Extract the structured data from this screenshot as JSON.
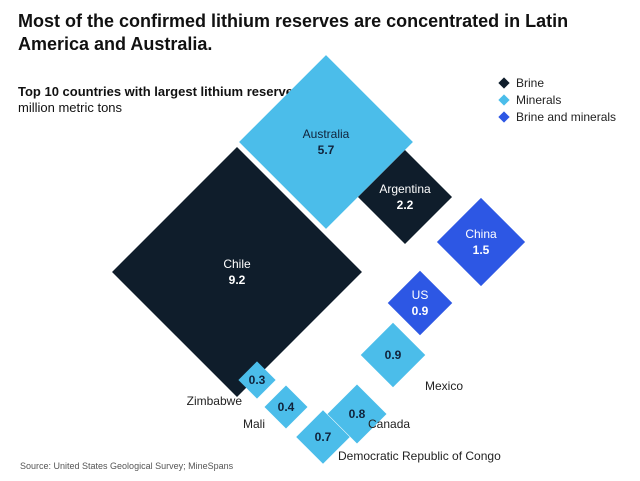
{
  "title": "Most of the confirmed lithium reserves are concentrated in Latin America and Australia.",
  "subtitle_bold": "Top 10 countries with largest lithium reserves,",
  "subtitle_unit": "million metric tons",
  "source": "Source: United States Geological Survey; MineSpans",
  "colors": {
    "Brine": "#0f1d2b",
    "Minerals": "#4bbdea",
    "Brine and minerals": "#2d57e4"
  },
  "legend": [
    {
      "label": "Brine",
      "color": "#0f1d2b"
    },
    {
      "label": "Minerals",
      "color": "#4bbdea"
    },
    {
      "label": "Brine and minerals",
      "color": "#2d57e4"
    }
  ],
  "chart_data": {
    "type": "diamond-area",
    "unit": "million metric tons",
    "items": [
      {
        "country": "Chile",
        "value": 9.2,
        "type": "Brine"
      },
      {
        "country": "Australia",
        "value": 5.7,
        "type": "Minerals"
      },
      {
        "country": "Argentina",
        "value": 2.2,
        "type": "Brine"
      },
      {
        "country": "China",
        "value": 1.5,
        "type": "Brine and minerals"
      },
      {
        "country": "US",
        "value": 0.9,
        "type": "Brine and minerals"
      },
      {
        "country": "Mexico",
        "value": 0.9,
        "type": "Minerals"
      },
      {
        "country": "Canada",
        "value": 0.8,
        "type": "Minerals"
      },
      {
        "country": "Democratic Republic of Congo",
        "value": 0.7,
        "type": "Minerals"
      },
      {
        "country": "Mali",
        "value": 0.4,
        "type": "Minerals"
      },
      {
        "country": "Zimbabwe",
        "value": 0.3,
        "type": "Minerals"
      }
    ]
  }
}
